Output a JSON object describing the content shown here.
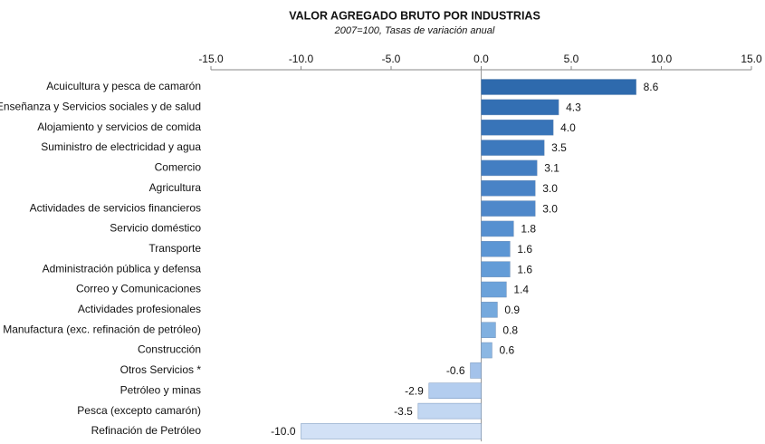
{
  "chart_data": {
    "type": "bar",
    "orientation": "horizontal",
    "title": "VALOR AGREGADO BRUTO POR INDUSTRIAS",
    "subtitle": "2007=100, Tasas de variación anual",
    "categories": [
      "Acuicultura y pesca de camarón",
      "Enseñanza  y Servicios sociales y de salud",
      "Alojamiento y servicios de comida ",
      "Suministro de electricidad y agua",
      "Comercio",
      "Agricultura",
      "Actividades de servicios financieros",
      "Servicio doméstico",
      "Transporte",
      "Administración pública y defensa",
      "Correo y Comunicaciones",
      "Actividades profesionales",
      "Manufactura (exc. refinación de petróleo)",
      "Construcción",
      "Otros Servicios *",
      "Petróleo y minas",
      "Pesca (excepto camarón)",
      "Refinación de Petróleo"
    ],
    "values": [
      8.6,
      4.3,
      4.0,
      3.5,
      3.1,
      3.0,
      3.0,
      1.8,
      1.6,
      1.6,
      1.4,
      0.9,
      0.8,
      0.6,
      -0.6,
      -2.9,
      -3.5,
      -10.0
    ],
    "value_labels": [
      "8.6",
      "4.3",
      "4.0",
      "3.5",
      "3.1",
      "3.0",
      "3.0",
      "1.8",
      "1.6",
      "1.6",
      "1.4",
      "0.9",
      "0.8",
      "0.6",
      "-0.6",
      "-2.9",
      "-3.5",
      "-10.0"
    ],
    "colors": [
      "#2e6aad",
      "#336fb3",
      "#3874b8",
      "#3d79bd",
      "#437ec2",
      "#4983c6",
      "#4f88ca",
      "#5690d0",
      "#5c96d4",
      "#639cd7",
      "#6ba2da",
      "#75a9dd",
      "#80b0e0",
      "#8bb7e3",
      "#a3c2ea",
      "#b3cdef",
      "#c2d7f2",
      "#d2e1f6"
    ],
    "xlim": [
      -15,
      15
    ],
    "xticks": [
      {
        "value": -15,
        "label": "-15.0"
      },
      {
        "value": -10,
        "label": "-10.0"
      },
      {
        "value": -5,
        "label": "-5.0"
      },
      {
        "value": 0,
        "label": "0.0"
      },
      {
        "value": 5,
        "label": "5.0"
      },
      {
        "value": 10,
        "label": "10.0"
      },
      {
        "value": 15,
        "label": "15.0"
      }
    ],
    "grid": false
  }
}
